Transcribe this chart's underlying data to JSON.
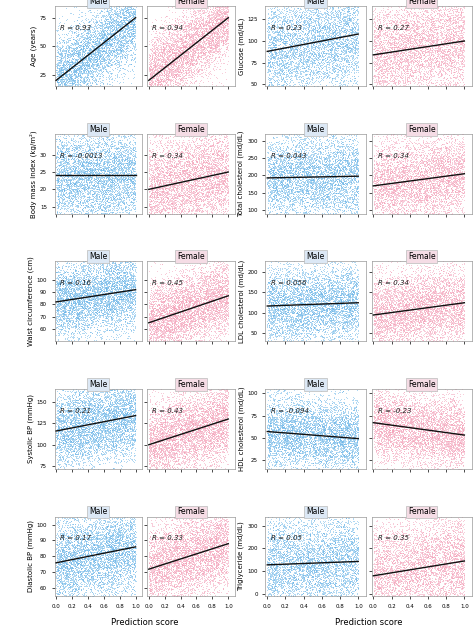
{
  "plots_left": [
    {
      "row": 0,
      "ylabel": "Age (years)",
      "ylim": [
        15,
        85
      ],
      "yticks": [
        25,
        50,
        75
      ],
      "male_r": "R = 0.93",
      "female_r": "R = 0.94",
      "male_slope": 55,
      "male_intercept": 20,
      "male_spread": 10,
      "female_slope": 55,
      "female_intercept": 20,
      "female_spread": 10
    },
    {
      "row": 1,
      "ylabel": "Body mass index (kg/m²)",
      "ylim": [
        13,
        36
      ],
      "yticks": [
        15,
        20,
        25,
        30
      ],
      "male_r": "R = -0.0013",
      "female_r": "R = 0.34",
      "male_slope": 0,
      "male_intercept": 24,
      "male_spread": 4,
      "female_slope": 5,
      "female_intercept": 20,
      "female_spread": 4
    },
    {
      "row": 2,
      "ylabel": "Waist circumference (cm)",
      "ylim": [
        50,
        115
      ],
      "yticks": [
        60,
        70,
        80,
        90,
        100
      ],
      "male_r": "R = 0.16",
      "female_r": "R = 0.45",
      "male_slope": 10,
      "male_intercept": 82,
      "male_spread": 9,
      "female_slope": 22,
      "female_intercept": 65,
      "female_spread": 9
    },
    {
      "row": 3,
      "ylabel": "Systolic BP (mmHg)",
      "ylim": [
        72,
        165
      ],
      "yticks": [
        75,
        100,
        125,
        150
      ],
      "male_r": "R = 0.21",
      "female_r": "R = 0.43",
      "male_slope": 18,
      "male_intercept": 116,
      "male_spread": 14,
      "female_slope": 30,
      "female_intercept": 100,
      "female_spread": 14
    },
    {
      "row": 4,
      "ylabel": "Diastolic BP (mmHg)",
      "ylim": [
        55,
        105
      ],
      "yticks": [
        60,
        70,
        80,
        90,
        100
      ],
      "male_r": "R = 0.17",
      "female_r": "R = 0.33",
      "male_slope": 10,
      "male_intercept": 76,
      "male_spread": 8,
      "female_slope": 16,
      "female_intercept": 72,
      "female_spread": 8
    }
  ],
  "plots_right": [
    {
      "row": 0,
      "ylabel": "Glucose (md/dL)",
      "ylim": [
        48,
        140
      ],
      "yticks": [
        50,
        75,
        100,
        125
      ],
      "male_r": "R = 0.23",
      "female_r": "R = 0.27",
      "male_slope": 20,
      "male_intercept": 88,
      "male_spread": 18,
      "female_slope": 16,
      "female_intercept": 84,
      "female_spread": 18
    },
    {
      "row": 1,
      "ylabel": "Total cholesterol (md/dL)",
      "ylim": [
        90,
        320
      ],
      "yticks": [
        100,
        150,
        200,
        250,
        300
      ],
      "male_r": "R = 0.043",
      "female_r": "R = 0.34",
      "male_slope": 5,
      "male_intercept": 193,
      "male_spread": 38,
      "female_slope": 35,
      "female_intercept": 170,
      "female_spread": 38
    },
    {
      "row": 2,
      "ylabel": "LDL cholesterol (md/dL)",
      "ylim": [
        30,
        225
      ],
      "yticks": [
        50,
        100,
        150,
        200
      ],
      "male_r": "R = 0.056",
      "female_r": "R = 0.34",
      "male_slope": 8,
      "male_intercept": 116,
      "male_spread": 28,
      "female_slope": 30,
      "female_intercept": 94,
      "female_spread": 28
    },
    {
      "row": 3,
      "ylabel": "HDL cholesterol (md/dL)",
      "ylim": [
        15,
        105
      ],
      "yticks": [
        25,
        50,
        75,
        100
      ],
      "male_r": "R = -0.094",
      "female_r": "R = -0.23",
      "male_slope": -8,
      "male_intercept": 57,
      "male_spread": 12,
      "female_slope": -14,
      "female_intercept": 67,
      "female_spread": 12
    },
    {
      "row": 4,
      "ylabel": "Triglyceride (md/dL)",
      "ylim": [
        -10,
        340
      ],
      "yticks": [
        0,
        100,
        200,
        300
      ],
      "male_r": "R = 0.05",
      "female_r": "R = 0.35",
      "male_slope": 15,
      "male_intercept": 128,
      "male_spread": 65,
      "female_slope": 65,
      "female_intercept": 80,
      "female_spread": 65
    }
  ],
  "male_color": "#6ab4e8",
  "female_color": "#f4a0b8",
  "line_color": "#111111",
  "title_bg_male": "#dce8f5",
  "title_bg_female": "#f5dce5",
  "title_border": "#bbbbbb",
  "bg_color": "#ffffff",
  "xlabel": "Prediction score",
  "n_points": 5000,
  "figsize": [
    4.74,
    6.33
  ],
  "dpi": 100
}
